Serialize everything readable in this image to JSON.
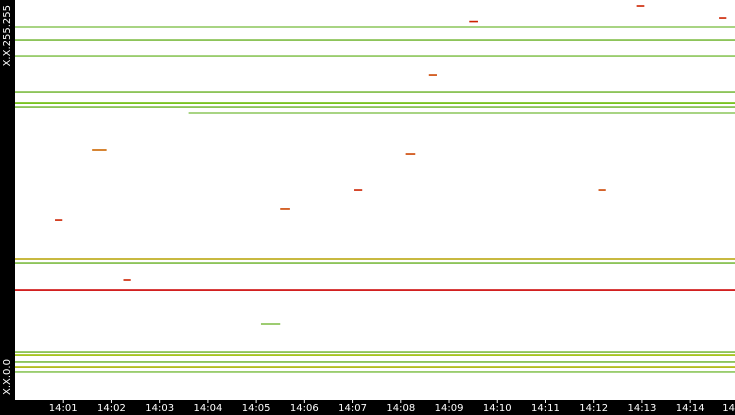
{
  "chart_data": {
    "type": "heatmap",
    "xlim": [
      0,
      14.93
    ],
    "xticks": [
      {
        "value": 1,
        "label": "14:01"
      },
      {
        "value": 2,
        "label": "14:02"
      },
      {
        "value": 3,
        "label": "14:03"
      },
      {
        "value": 4,
        "label": "14:04"
      },
      {
        "value": 5,
        "label": "14:05"
      },
      {
        "value": 6,
        "label": "14:06"
      },
      {
        "value": 7,
        "label": "14:07"
      },
      {
        "value": 8,
        "label": "14:08"
      },
      {
        "value": 9,
        "label": "14:09"
      },
      {
        "value": 10,
        "label": "14:10"
      },
      {
        "value": 11,
        "label": "14:11"
      },
      {
        "value": 12,
        "label": "14:12"
      },
      {
        "value": 13,
        "label": "14:13"
      },
      {
        "value": 14,
        "label": "14:14"
      },
      {
        "value": 15,
        "label": "14"
      }
    ],
    "ylim": [
      0,
      65535
    ],
    "yticks": [
      {
        "value": 0,
        "label": "X.X.0.0"
      },
      {
        "value": 65535,
        "label": "X.X.255.255"
      }
    ],
    "segments": [
      {
        "y": 61110,
        "x": [
          0,
          14.93
        ],
        "color": "#8cc65a"
      },
      {
        "y": 58970,
        "x": [
          0,
          14.93
        ],
        "color": "#7dbb42"
      },
      {
        "y": 56350,
        "x": [
          0,
          14.93
        ],
        "color": "#8cc65a"
      },
      {
        "y": 50450,
        "x": [
          0,
          14.93
        ],
        "color": "#7dbb42"
      },
      {
        "y": 48650,
        "x": [
          0,
          14.93
        ],
        "color": "#66bb00"
      },
      {
        "y": 47990,
        "x": [
          0,
          14.93
        ],
        "color": "#7dbb42"
      },
      {
        "y": 47020,
        "x": [
          3.6,
          14.93
        ],
        "color": "#8cc65a"
      },
      {
        "y": 23100,
        "x": [
          0,
          14.93
        ],
        "color": "#b5a200"
      },
      {
        "y": 22440,
        "x": [
          0,
          14.93
        ],
        "color": "#7dbb42"
      },
      {
        "y": 18020,
        "x": [
          0,
          14.93
        ],
        "color": "#cc0000"
      },
      {
        "y": 7860,
        "x": [
          0,
          14.93
        ],
        "color": "#7dbb42"
      },
      {
        "y": 7370,
        "x": [
          0,
          14.93
        ],
        "color": "#99bb00"
      },
      {
        "y": 6230,
        "x": [
          0,
          14.93
        ],
        "color": "#7dbb42"
      },
      {
        "y": 5400,
        "x": [
          0,
          14.93
        ],
        "color": "#aab300"
      },
      {
        "y": 4590,
        "x": [
          0,
          14.93
        ],
        "color": "#8cc65a"
      },
      {
        "y": 62000,
        "x": [
          9.42,
          9.6
        ],
        "color": "#cc2200"
      },
      {
        "y": 64550,
        "x": [
          12.89,
          13.05
        ],
        "color": "#cc2200"
      },
      {
        "y": 62580,
        "x": [
          14.6,
          14.75
        ],
        "color": "#cc2200"
      },
      {
        "y": 53240,
        "x": [
          8.58,
          8.75
        ],
        "color": "#cc4400"
      },
      {
        "y": 34400,
        "x": [
          7.03,
          7.2
        ],
        "color": "#cc2200"
      },
      {
        "y": 29480,
        "x": [
          0.83,
          0.98
        ],
        "color": "#cc2200"
      },
      {
        "y": 34400,
        "x": [
          12.1,
          12.25
        ],
        "color": "#cc4400"
      },
      {
        "y": 19660,
        "x": [
          2.25,
          2.4
        ],
        "color": "#cc2200"
      },
      {
        "y": 40960,
        "x": [
          1.6,
          1.9
        ],
        "color": "#cc6600"
      },
      {
        "y": 40300,
        "x": [
          8.1,
          8.3
        ],
        "color": "#cc4400"
      },
      {
        "y": 12450,
        "x": [
          5.1,
          5.5
        ],
        "color": "#7dbb42"
      },
      {
        "y": 31300,
        "x": [
          5.5,
          5.7
        ],
        "color": "#cc4400"
      }
    ]
  }
}
